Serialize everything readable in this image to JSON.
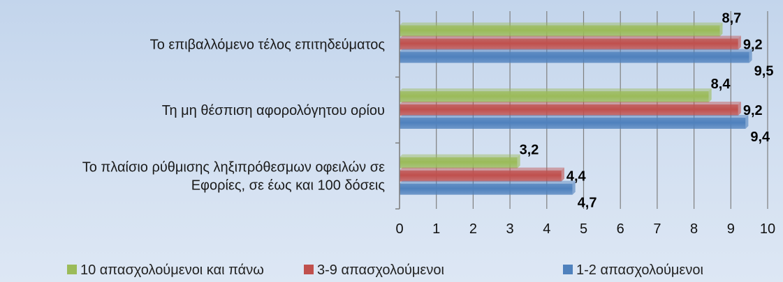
{
  "chart_data": {
    "type": "bar",
    "orientation": "horizontal",
    "categories": [
      "Το επιβαλλόμενο τέλος επιτηδεύματος",
      "Τη μη θέσπιση αφορολόγητου ορίου",
      "Το πλαίσιο ρύθμισης ληξιπρόθεσμων οφειλών σε Εφορίες, σε έως και 100 δόσεις"
    ],
    "category_lines": [
      [
        "Το επιβαλλόμενο τέλος επιτηδεύματος"
      ],
      [
        "Τη μη θέσπιση αφορολόγητου ορίου"
      ],
      [
        "Το πλαίσιο ρύθμισης ληξιπρόθεσμων οφειλών σε",
        "Εφορίες, σε έως και 100 δόσεις"
      ]
    ],
    "series": [
      {
        "name": "10 απασχολούμενοι  και πάνω",
        "color": "#9bbb59",
        "values": [
          8.7,
          8.4,
          3.2
        ],
        "labels": [
          "8,7",
          "8,4",
          "3,2"
        ]
      },
      {
        "name": "3-9 απασχολούμενοι",
        "color": "#c0504d",
        "values": [
          9.2,
          9.2,
          4.4
        ],
        "labels": [
          "9,2",
          "9,2",
          "4,4"
        ]
      },
      {
        "name": "1-2 απασχολούμενοι",
        "color": "#4f81bd",
        "values": [
          9.5,
          9.4,
          4.7
        ],
        "labels": [
          "9,5",
          "9,4",
          "4,7"
        ]
      }
    ],
    "xlim": [
      0,
      10
    ],
    "xticks": [
      0,
      1,
      2,
      3,
      4,
      5,
      6,
      7,
      8,
      9,
      10
    ],
    "grid": true,
    "legend": "bottom",
    "title": "",
    "xlabel": "",
    "ylabel": ""
  }
}
